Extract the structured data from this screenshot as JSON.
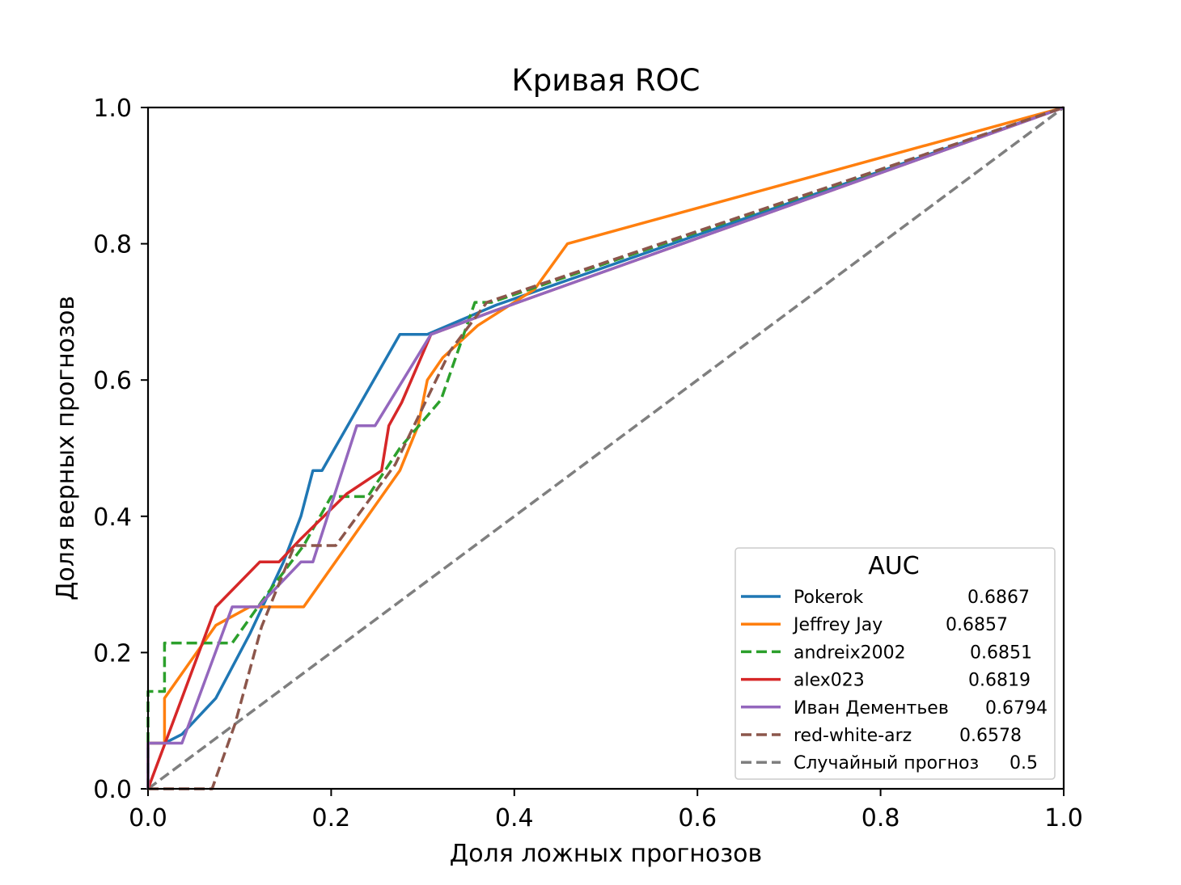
{
  "chart_data": {
    "type": "line",
    "title": "Кривая ROC",
    "xlabel": "Доля ложных прогнозов",
    "ylabel": "Доля верных прогнозов",
    "xlim": [
      0.0,
      1.0
    ],
    "ylim": [
      0.0,
      1.0
    ],
    "xticks": [
      "0.0",
      "0.2",
      "0.4",
      "0.6",
      "0.8",
      "1.0"
    ],
    "yticks": [
      "0.0",
      "0.2",
      "0.4",
      "0.6",
      "0.8",
      "1.0"
    ],
    "grid": false,
    "legend": {
      "title": "AUC",
      "position": "lower-right"
    },
    "series": [
      {
        "name": "Pokerok",
        "auc": "0.6867",
        "color": "#1f77b4",
        "dashed": false,
        "x": [
          0.0,
          0.0,
          0.018,
          0.037,
          0.074,
          0.111,
          0.148,
          0.167,
          0.18,
          0.19,
          0.275,
          0.305,
          0.38,
          1.0
        ],
        "y": [
          0.0,
          0.067,
          0.067,
          0.08,
          0.133,
          0.227,
          0.333,
          0.4,
          0.467,
          0.467,
          0.667,
          0.667,
          0.71,
          1.0
        ]
      },
      {
        "name": "Jeffrey Jay",
        "auc": "0.6857",
        "color": "#ff7f0e",
        "dashed": false,
        "x": [
          0.0,
          0.0,
          0.018,
          0.018,
          0.074,
          0.111,
          0.17,
          0.275,
          0.295,
          0.305,
          0.322,
          0.36,
          0.422,
          0.458,
          1.0
        ],
        "y": [
          0.0,
          0.067,
          0.067,
          0.133,
          0.24,
          0.267,
          0.267,
          0.467,
          0.533,
          0.6,
          0.633,
          0.68,
          0.733,
          0.8,
          1.0
        ]
      },
      {
        "name": "andreix2002",
        "auc": "0.6851",
        "color": "#2ca02c",
        "dashed": true,
        "x": [
          0.0,
          0.0,
          0.018,
          0.018,
          0.092,
          0.13,
          0.17,
          0.2,
          0.24,
          0.275,
          0.32,
          0.357,
          0.375,
          1.0
        ],
        "y": [
          0.0,
          0.143,
          0.143,
          0.214,
          0.214,
          0.286,
          0.357,
          0.429,
          0.429,
          0.5,
          0.571,
          0.714,
          0.714,
          1.0
        ]
      },
      {
        "name": "alex023",
        "auc": "0.6819",
        "color": "#d62728",
        "dashed": false,
        "x": [
          0.0,
          0.037,
          0.074,
          0.122,
          0.143,
          0.167,
          0.217,
          0.255,
          0.263,
          0.277,
          0.309,
          0.375,
          1.0
        ],
        "y": [
          0.0,
          0.133,
          0.267,
          0.333,
          0.333,
          0.367,
          0.433,
          0.467,
          0.533,
          0.567,
          0.667,
          0.7,
          1.0
        ]
      },
      {
        "name": "Иван Дементьев",
        "auc": "0.6794",
        "color": "#9467bd",
        "dashed": false,
        "x": [
          0.0,
          0.0,
          0.018,
          0.037,
          0.092,
          0.12,
          0.167,
          0.18,
          0.228,
          0.248,
          0.309,
          0.375,
          1.0
        ],
        "y": [
          0.0,
          0.067,
          0.067,
          0.067,
          0.267,
          0.267,
          0.333,
          0.333,
          0.533,
          0.533,
          0.667,
          0.7,
          1.0
        ]
      },
      {
        "name": "red-white-arz",
        "auc": "0.6578",
        "color": "#8c564b",
        "dashed": true,
        "x": [
          0.0,
          0.07,
          0.095,
          0.124,
          0.16,
          0.205,
          0.27,
          0.33,
          0.37,
          1.0
        ],
        "y": [
          0.0,
          0.0,
          0.095,
          0.238,
          0.357,
          0.357,
          0.476,
          0.643,
          0.714,
          1.0
        ]
      },
      {
        "name": "Случайный прогноз",
        "auc": "0.5",
        "color": "#7f7f7f",
        "dashed": true,
        "x": [
          0.0,
          1.0
        ],
        "y": [
          0.0,
          1.0
        ]
      }
    ]
  }
}
